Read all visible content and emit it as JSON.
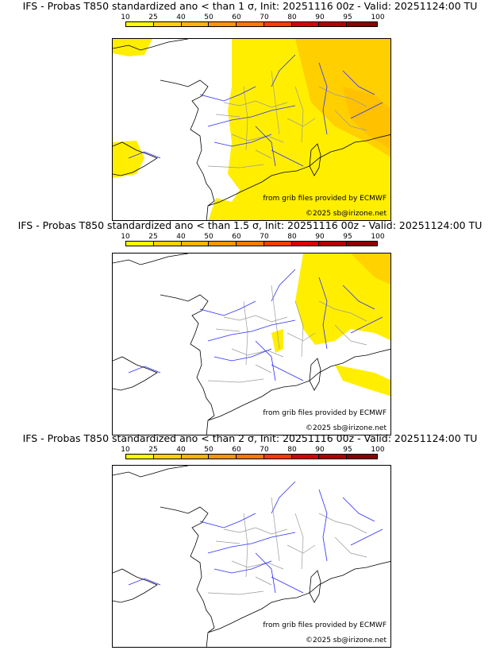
{
  "panels": [
    {
      "title": "IFS - Probas T850  standardized ano < than 1 σ, Init: 20251116 00z - Valid: 20251124:00 TU"
    },
    {
      "title": "IFS - Probas T850  standardized ano < than 1.5 σ, Init: 20251116 00z - Valid: 20251124:00 TU"
    },
    {
      "title": "IFS - Probas T850  standardized ano < than 2 σ, Init: 20251116 00z - Valid: 20251124:00 TU"
    }
  ],
  "legend": {
    "ticks": [
      "10",
      "25",
      "40",
      "50",
      "60",
      "70",
      "80",
      "90",
      "95",
      "100"
    ],
    "colors": [
      "#ffff00",
      "#ffd200",
      "#ffb400",
      "#ff9600",
      "#ff7800",
      "#ff3c00",
      "#dc0000",
      "#b40000",
      "#8c0000"
    ]
  },
  "credits": {
    "source": "from grib files provided by ECMWF",
    "copyright": "©2025 sb@irizone.net"
  },
  "colors": {
    "land_outline": "#000000",
    "rivers": "#2d2dff",
    "borders": "#9a9a9a"
  }
}
